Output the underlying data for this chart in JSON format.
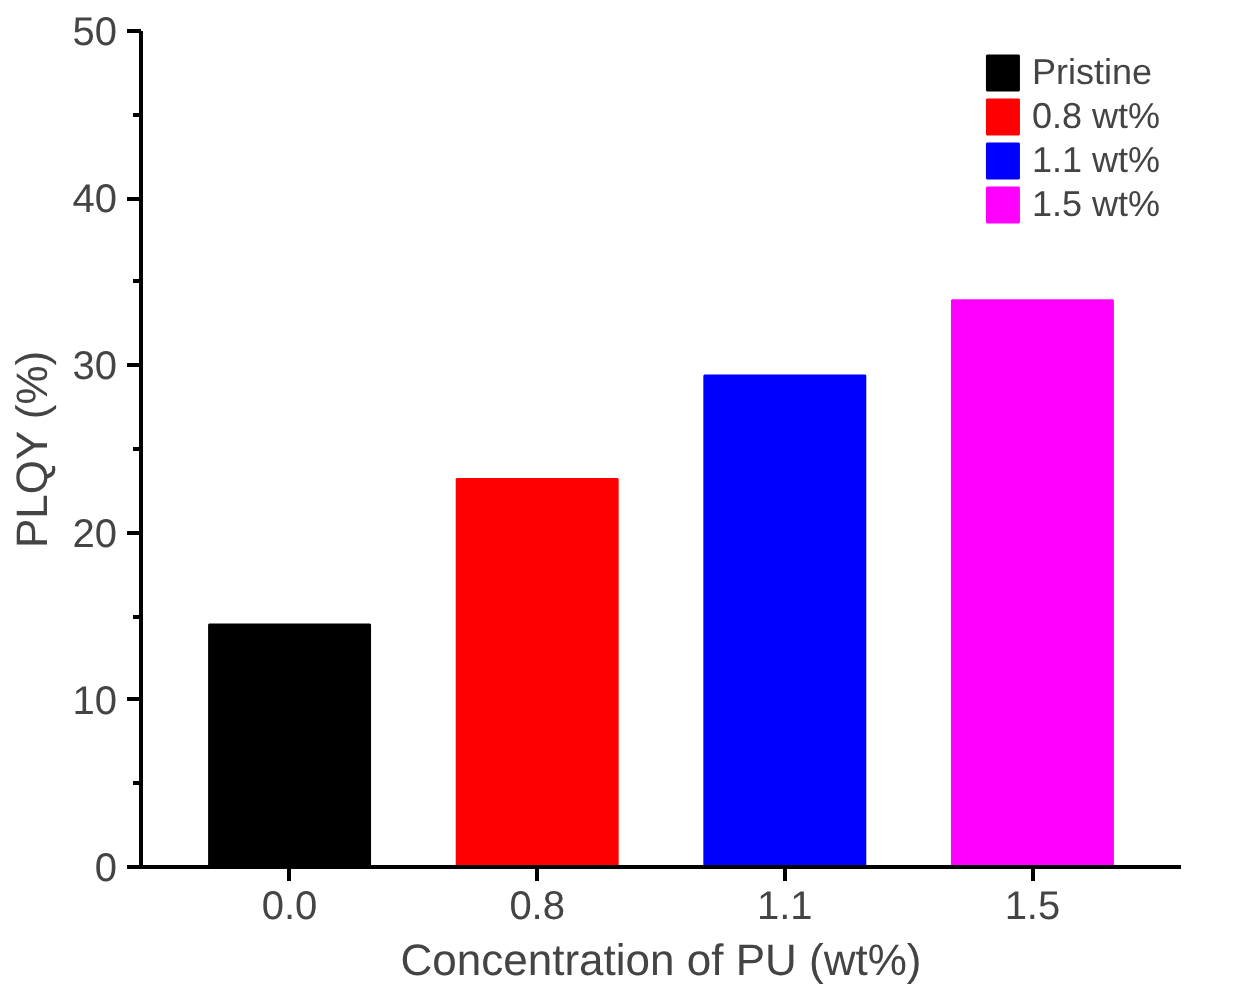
{
  "chart_data": {
    "type": "bar",
    "xlabel": "Concentration of PU (wt%)",
    "ylabel": "PLQY (%)",
    "categories": [
      "0.0",
      "0.8",
      "1.1",
      "1.5"
    ],
    "series": [
      {
        "name": "Pristine",
        "color": "#000000",
        "values": [
          14.5,
          null,
          null,
          null
        ]
      },
      {
        "name": "0.8 wt%",
        "color": "#ff0000",
        "values": [
          null,
          23.2,
          null,
          null
        ]
      },
      {
        "name": "1.1 wt%",
        "color": "#0000ff",
        "values": [
          null,
          null,
          29.4,
          null
        ]
      },
      {
        "name": "1.5 wt%",
        "color": "#ff00ff",
        "values": [
          null,
          null,
          null,
          33.9
        ]
      }
    ],
    "ylim": [
      0,
      50
    ],
    "yticks": [
      0,
      10,
      20,
      30,
      40,
      50
    ],
    "grid": false,
    "legend": "top right"
  }
}
